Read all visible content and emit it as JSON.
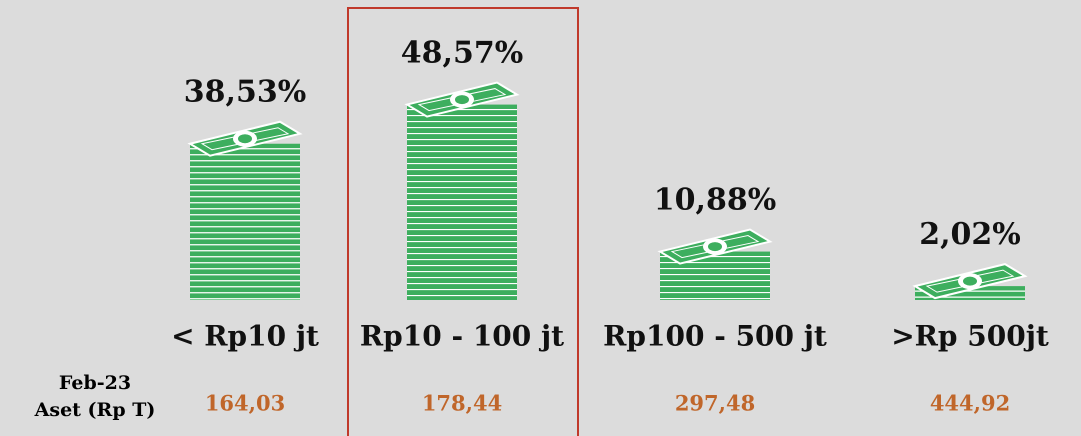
{
  "chart_data": {
    "type": "pictogram",
    "categories": [
      "< Rp10 jt",
      "Rp10 - 100 jt",
      "Rp100 - 500 jt",
      ">Rp 500jt"
    ],
    "values": [
      38.53,
      48.57,
      10.88,
      2.02
    ],
    "value_labels": [
      "38,53%",
      "48,57%",
      "10,88%",
      "2,02%"
    ],
    "color": "#3dae5e",
    "highlight_index": 1,
    "highlight_color": "#c0392b",
    "assets": {
      "period": "Feb-23",
      "label": "Aset (Rp T)",
      "values": [
        164.03,
        178.44,
        297.48,
        444.92
      ],
      "value_labels": [
        "164,03",
        "178,44",
        "297,48",
        "444,92"
      ],
      "color": "#c0662a"
    }
  }
}
